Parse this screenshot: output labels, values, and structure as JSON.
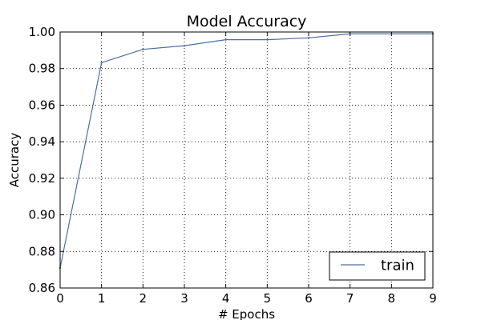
{
  "chart_data": {
    "type": "line",
    "title": "Model Accuracy",
    "xlabel": "# Epochs",
    "ylabel": "Accuracy",
    "xlim": [
      0,
      9
    ],
    "ylim": [
      0.86,
      1.0
    ],
    "grid": true,
    "legend_position": "bottom-right",
    "x_ticks": [
      0,
      1,
      2,
      3,
      4,
      5,
      6,
      7,
      8,
      9
    ],
    "x_tick_labels": [
      "0",
      "1",
      "2",
      "3",
      "4",
      "5",
      "6",
      "7",
      "8",
      "9"
    ],
    "y_ticks": [
      0.86,
      0.88,
      0.9,
      0.92,
      0.94,
      0.96,
      0.98,
      1.0
    ],
    "y_tick_labels": [
      "0.86",
      "0.88",
      "0.90",
      "0.92",
      "0.94",
      "0.96",
      "0.98",
      "1.00"
    ],
    "series": [
      {
        "name": "train",
        "color": "#4a6fa5",
        "x": [
          0,
          1,
          2,
          3,
          4,
          5,
          6,
          7,
          8,
          9
        ],
        "values": [
          0.871,
          0.9832,
          0.9905,
          0.9925,
          0.9958,
          0.9958,
          0.9968,
          0.999,
          0.999,
          0.999
        ]
      }
    ]
  }
}
